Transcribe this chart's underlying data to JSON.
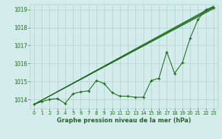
{
  "title": "Graphe pression niveau de la mer (hPa)",
  "bg_color": "#d4ecec",
  "grid_color": "#b0cccc",
  "line_color": "#1a6b1a",
  "xlim": [
    -0.5,
    23.5
  ],
  "ylim": [
    1013.5,
    1019.3
  ],
  "yticks": [
    1014,
    1015,
    1016,
    1017,
    1018,
    1019
  ],
  "xticks": [
    0,
    1,
    2,
    3,
    4,
    5,
    6,
    7,
    8,
    9,
    10,
    11,
    12,
    13,
    14,
    15,
    16,
    17,
    18,
    19,
    20,
    21,
    22,
    23
  ],
  "straight_lines": [
    [
      [
        0,
        23
      ],
      [
        1013.72,
        1019.1
      ]
    ],
    [
      [
        0,
        23
      ],
      [
        1013.72,
        1019.15
      ]
    ],
    [
      [
        0,
        23
      ],
      [
        1013.72,
        1019.2
      ]
    ],
    [
      [
        0,
        23
      ],
      [
        1013.72,
        1019.05
      ]
    ]
  ],
  "main_series": [
    1013.72,
    1013.88,
    1014.0,
    1014.05,
    1013.78,
    1014.32,
    1014.42,
    1014.48,
    1015.05,
    1014.88,
    1014.38,
    1014.18,
    1014.18,
    1014.12,
    1014.12,
    1015.05,
    1015.18,
    1016.65,
    1015.45,
    1016.05,
    1017.42,
    1018.45,
    1019.0,
    1019.12
  ],
  "ylabel_fontsize": 5.5,
  "xlabel_fontsize": 6.2,
  "tick_fontsize": 5.0,
  "label_color": "#1a6b1a"
}
